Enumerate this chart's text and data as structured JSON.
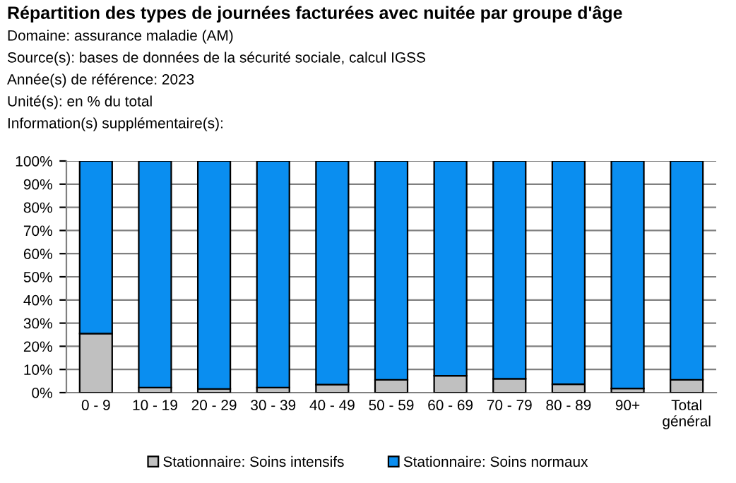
{
  "chart_data": {
    "type": "bar",
    "stacked": true,
    "title": "Répartition des types de journées facturées avec nuitée par groupe d'âge",
    "annotations": [
      "Domaine: assurance maladie (AM)",
      "Source(s): bases de données de la sécurité sociale, calcul IGSS",
      "Année(s) de référence: 2023",
      "Unité(s): en % du total",
      "Information(s) supplémentaire(s):"
    ],
    "categories": [
      "0 - 9",
      "10 - 19",
      "20 - 29",
      "30 - 39",
      "40 - 49",
      "50 - 59",
      "60 - 69",
      "70 - 79",
      "80 - 89",
      "90+",
      "Total\ngénéral"
    ],
    "series": [
      {
        "name": "Stationnaire: Soins intensifs",
        "color": "#c0c0c0",
        "values": [
          25.5,
          2.2,
          1.6,
          2.2,
          3.5,
          5.5,
          7.3,
          6.0,
          3.6,
          1.8,
          5.5
        ]
      },
      {
        "name": "Stationnaire: Soins normaux",
        "color": "#0a8ef0",
        "values": [
          74.5,
          97.8,
          98.4,
          97.8,
          96.5,
          94.5,
          92.7,
          94.0,
          96.4,
          98.2,
          94.5
        ]
      }
    ],
    "ylim": [
      0,
      100
    ],
    "yticks": [
      {
        "value": 0,
        "label": "0%"
      },
      {
        "value": 10,
        "label": "10%"
      },
      {
        "value": 20,
        "label": "20%"
      },
      {
        "value": 30,
        "label": "30%"
      },
      {
        "value": 40,
        "label": "40%"
      },
      {
        "value": 50,
        "label": "50%"
      },
      {
        "value": 60,
        "label": "60%"
      },
      {
        "value": 70,
        "label": "70%"
      },
      {
        "value": 80,
        "label": "80%"
      },
      {
        "value": 90,
        "label": "90%"
      },
      {
        "value": 100,
        "label": "100%"
      }
    ],
    "grid": "y",
    "legend": "bottom"
  }
}
